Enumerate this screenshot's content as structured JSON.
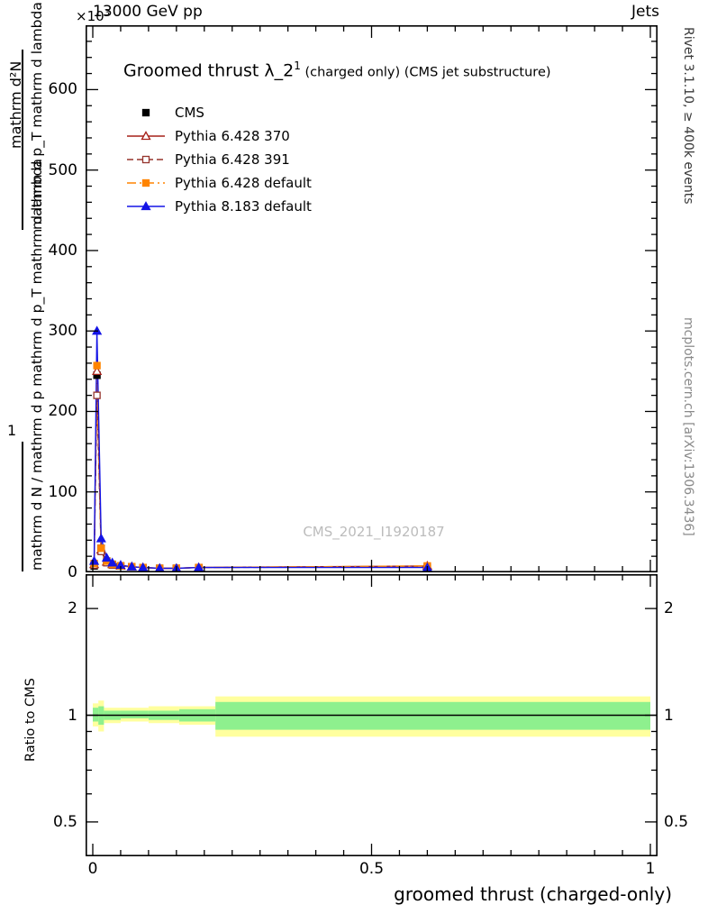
{
  "header": {
    "y_multiplier_base": "×10",
    "y_multiplier_exp": "3",
    "beam": "13000 GeV pp",
    "process": "Jets"
  },
  "plot": {
    "title_main": "Groomed thrust λ_2",
    "title_sup": "1",
    "title_note": " (charged only) (CMS jet substructure)",
    "watermark": "CMS_2021_I1920187",
    "xlabel": "groomed thrust (charged-only)",
    "ratio_ylabel": "Ratio to CMS",
    "ylabel_parts": {
      "top_numerator": "mathrm d²N",
      "top_denominator": "mathrm d p_T mathrm d lambda",
      "bottom_numerator": "1",
      "bottom_denominator": "mathrm d N / mathrm d p mathrm d p_T mathrm d lambda"
    }
  },
  "sidebar_right": {
    "top": "Rivet 3.1.10, ≥ 400k events",
    "bottom": "mcplots.cern.ch [arXiv:1306.3436]"
  },
  "colors": {
    "band_yellow": "#ffff9e",
    "band_green": "#8ef08e",
    "frame": "#000000"
  },
  "legend": {
    "items": [
      {
        "label": "CMS",
        "color": "#000000",
        "marker": "square-filled",
        "line": "none"
      },
      {
        "label": "Pythia 6.428 370",
        "color": "#a52019",
        "marker": "triangle-open",
        "line": "solid"
      },
      {
        "label": "Pythia 6.428 391",
        "color": "#95342c",
        "marker": "square-open",
        "line": "dashed"
      },
      {
        "label": "Pythia 6.428 default",
        "color": "#ff8400",
        "marker": "square-filled",
        "line": "dashdot"
      },
      {
        "label": "Pythia 8.183 default",
        "color": "#1414e6",
        "marker": "triangle-filled",
        "line": "solid"
      }
    ]
  },
  "chart_data": {
    "type": "line",
    "title": "Groomed thrust λ_2^1 (charged only) (CMS jet substructure)",
    "xlabel": "groomed thrust (charged-only)",
    "ylabel": "d²N / d p_T d lambda",
    "y_unit": "×10³",
    "xlim": [
      0,
      1
    ],
    "ylim": [
      0,
      680
    ],
    "xticks": [
      0,
      0.5,
      1
    ],
    "yticks": [
      0,
      100,
      200,
      300,
      400,
      500,
      600
    ],
    "grid": false,
    "legend_position": "top-left",
    "x": [
      0.0025,
      0.0075,
      0.015,
      0.025,
      0.035,
      0.05,
      0.07,
      0.09,
      0.12,
      0.15,
      0.19,
      0.6
    ],
    "series": [
      {
        "name": "CMS",
        "color": "#000000",
        "marker": "square-filled",
        "line": "none",
        "values": [
          8,
          245,
          30,
          14,
          10,
          8,
          7,
          6,
          5,
          5,
          6,
          5
        ]
      },
      {
        "name": "Pythia 6.428 370",
        "color": "#a52019",
        "marker": "triangle-open",
        "line": "solid",
        "values": [
          10,
          250,
          28,
          13,
          10,
          8,
          7,
          6,
          5,
          5,
          6,
          8
        ]
      },
      {
        "name": "Pythia 6.428 391",
        "color": "#95342c",
        "marker": "square-open",
        "line": "dashed",
        "values": [
          9,
          220,
          26,
          12,
          9,
          8,
          7,
          6,
          5,
          5,
          6,
          7
        ]
      },
      {
        "name": "Pythia 6.428 default",
        "color": "#ff8400",
        "marker": "square-filled",
        "line": "dashdot",
        "values": [
          11,
          257,
          30,
          14,
          10,
          8,
          7,
          6,
          5,
          5,
          6,
          8
        ]
      },
      {
        "name": "Pythia 8.183 default",
        "color": "#1414e6",
        "marker": "triangle-filled",
        "line": "solid",
        "values": [
          14,
          300,
          42,
          18,
          12,
          9,
          7,
          6,
          5,
          5,
          6,
          6
        ]
      }
    ],
    "ratio": {
      "ylabel": "Ratio to CMS",
      "scale": "log",
      "ylim": [
        0.4,
        2.5
      ],
      "yticks": [
        0.5,
        1,
        2
      ],
      "tick_values": [
        0.5,
        0.6,
        0.7,
        0.8,
        0.9,
        1,
        2
      ],
      "unity": 1,
      "bands": [
        {
          "x0": 0.0,
          "x1": 0.01,
          "yellow": [
            0.93,
            1.08
          ],
          "green": [
            0.96,
            1.05
          ]
        },
        {
          "x0": 0.01,
          "x1": 0.02,
          "yellow": [
            0.9,
            1.1
          ],
          "green": [
            0.94,
            1.06
          ]
        },
        {
          "x0": 0.02,
          "x1": 0.05,
          "yellow": [
            0.95,
            1.05
          ],
          "green": [
            0.97,
            1.03
          ]
        },
        {
          "x0": 0.05,
          "x1": 0.1,
          "yellow": [
            0.96,
            1.05
          ],
          "green": [
            0.98,
            1.03
          ]
        },
        {
          "x0": 0.1,
          "x1": 0.155,
          "yellow": [
            0.95,
            1.06
          ],
          "green": [
            0.97,
            1.03
          ]
        },
        {
          "x0": 0.155,
          "x1": 0.22,
          "yellow": [
            0.94,
            1.06
          ],
          "green": [
            0.96,
            1.04
          ]
        },
        {
          "x0": 0.22,
          "x1": 1.0,
          "yellow": [
            0.87,
            1.13
          ],
          "green": [
            0.91,
            1.09
          ]
        }
      ]
    }
  }
}
